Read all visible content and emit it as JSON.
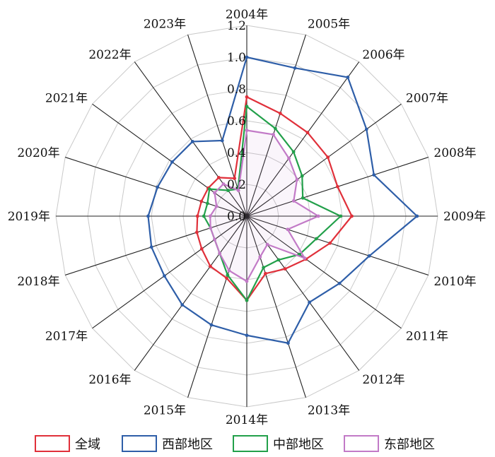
{
  "chart_data": {
    "type": "radar",
    "categories": [
      "2004年",
      "2005年",
      "2006年",
      "2007年",
      "2008年",
      "2009年",
      "2010年",
      "2011年",
      "2012年",
      "2013年",
      "2014年",
      "2015年",
      "2016年",
      "2017年",
      "2018年",
      "2019年",
      "2020年",
      "2021年",
      "2022年",
      "2023年"
    ],
    "rlim": [
      0,
      1.2
    ],
    "ticks": [
      "0.0",
      "0.2",
      "0.4",
      "0.6",
      "0.8",
      "1.0",
      "1.2"
    ],
    "tick_values": [
      0,
      0.2,
      0.4,
      0.6,
      0.8,
      1.0,
      1.2
    ],
    "grid": true,
    "legend_position": "bottom",
    "series": [
      {
        "name": "全域",
        "color": "#e0303a",
        "values": [
          0.75,
          0.68,
          0.65,
          0.63,
          0.6,
          0.66,
          0.55,
          0.46,
          0.41,
          0.38,
          0.53,
          0.41,
          0.39,
          0.35,
          0.33,
          0.31,
          0.3,
          0.3,
          0.3,
          0.25
        ]
      },
      {
        "name": "西部地区",
        "color": "#2e5ea8",
        "values": [
          1.0,
          0.98,
          1.08,
          0.93,
          0.84,
          1.07,
          0.81,
          0.72,
          0.67,
          0.84,
          0.75,
          0.72,
          0.69,
          0.64,
          0.63,
          0.62,
          0.59,
          0.58,
          0.58,
          0.5
        ]
      },
      {
        "name": "中部地区",
        "color": "#22a04a",
        "values": [
          0.69,
          0.58,
          0.5,
          0.43,
          0.37,
          0.59,
          0.46,
          0.41,
          0.34,
          0.34,
          0.53,
          0.39,
          0.29,
          0.25,
          0.24,
          0.27,
          0.26,
          0.29,
          0.2,
          0.18
        ]
      },
      {
        "name": "东部地区",
        "color": "#c27ac7",
        "values": [
          0.54,
          0.54,
          0.45,
          0.39,
          0.31,
          0.45,
          0.27,
          0.45,
          0.22,
          0.27,
          0.41,
          0.36,
          0.29,
          0.25,
          0.24,
          0.23,
          0.2,
          0.25,
          0.25,
          0.17
        ]
      }
    ]
  }
}
